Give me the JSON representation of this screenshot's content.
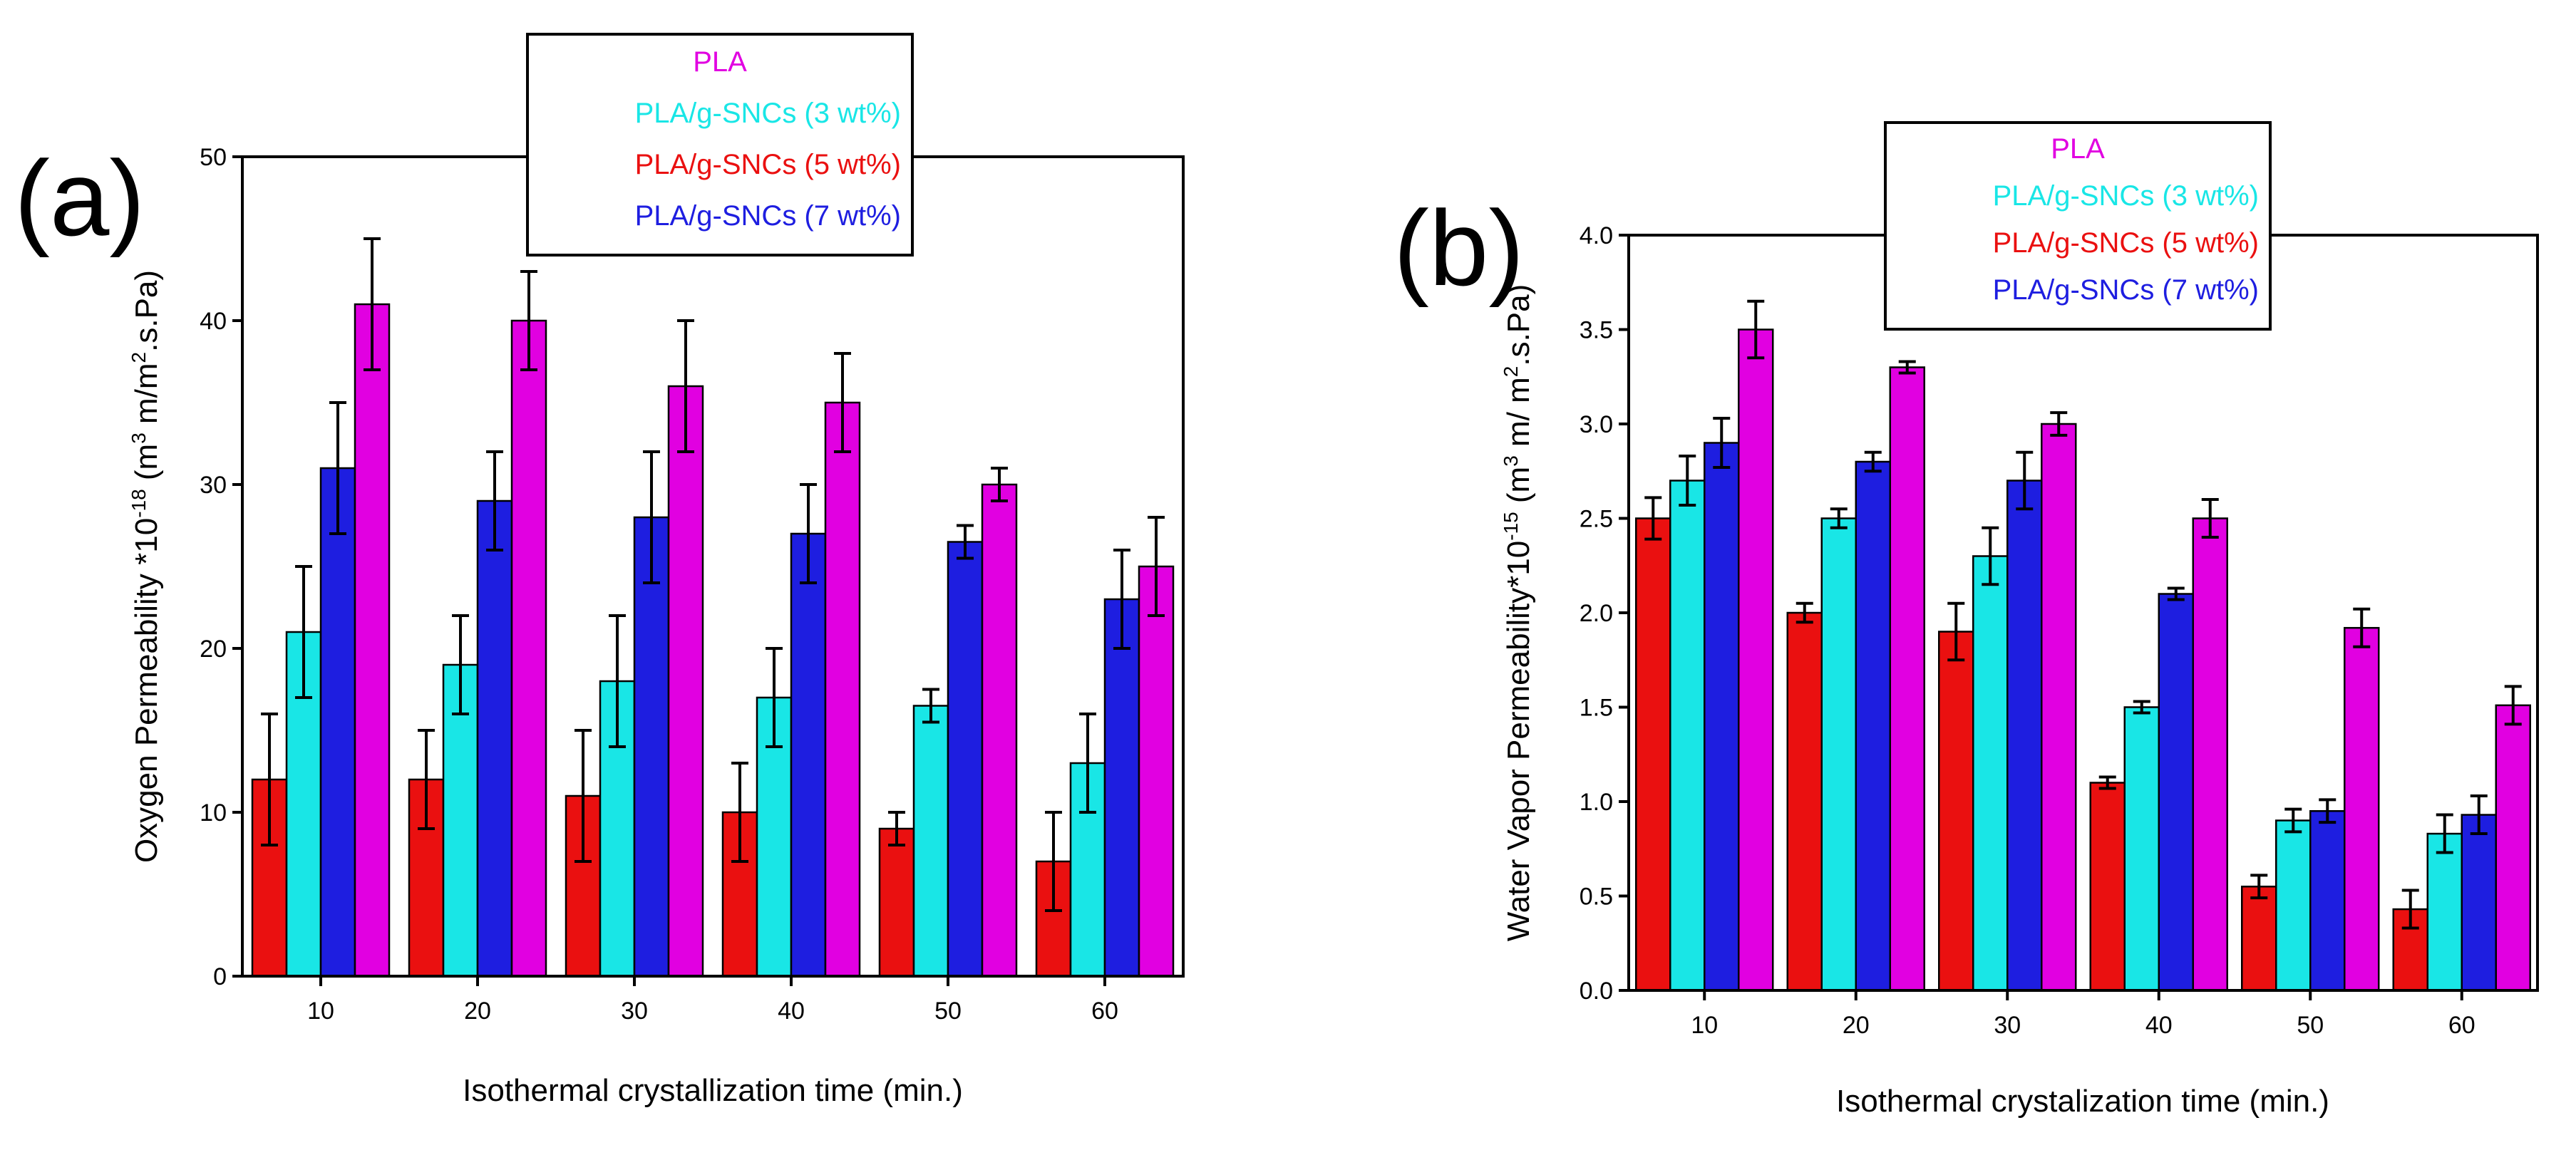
{
  "colors": {
    "PLA": "#e100e1",
    "PLA/g-SNCs (3 wt%)": "#19e6e6",
    "PLA/g-SNCs (5 wt%)": "#ea1010",
    "PLA/g-SNCs (7 wt%)": "#1e1ee0"
  },
  "chart_data": [
    {
      "type": "bar",
      "panel_label": "(a)",
      "title": "",
      "categories": [
        "10",
        "20",
        "30",
        "40",
        "50",
        "60"
      ],
      "xlabel": "Isothermal crystallization time (min.)",
      "ylabel": "Oxygen Permeability *10",
      "ylabel_sup1": "-18",
      "ylabel_mid": " (m",
      "ylabel_sup2": "3",
      "ylabel_mid2": " m/m",
      "ylabel_sup3": "2",
      "ylabel_end": ".s.Pa)",
      "ylim": [
        0,
        50
      ],
      "yticks": [
        0,
        10,
        20,
        30,
        40,
        50
      ],
      "ytick_labels": [
        "0",
        "10",
        "20",
        "30",
        "40",
        "50"
      ],
      "legend": [
        "PLA",
        "PLA/g-SNCs (3 wt%)",
        "PLA/g-SNCs (5 wt%)",
        "PLA/g-SNCs (7 wt%)"
      ],
      "legend_position": "top-center",
      "bar_order": [
        "PLA/g-SNCs (5 wt%)",
        "PLA/g-SNCs (3 wt%)",
        "PLA/g-SNCs (7 wt%)",
        "PLA"
      ],
      "series": [
        {
          "name": "PLA/g-SNCs (5 wt%)",
          "values": [
            12,
            12,
            11,
            10,
            9,
            7
          ],
          "errors": [
            4,
            3,
            4,
            3,
            1,
            3
          ]
        },
        {
          "name": "PLA/g-SNCs (3 wt%)",
          "values": [
            21,
            19,
            18,
            17,
            16.5,
            13
          ],
          "errors": [
            4,
            3,
            4,
            3,
            1,
            3
          ]
        },
        {
          "name": "PLA/g-SNCs (7 wt%)",
          "values": [
            31,
            29,
            28,
            27,
            26.5,
            23
          ],
          "errors": [
            4,
            3,
            4,
            3,
            1,
            3
          ]
        },
        {
          "name": "PLA",
          "values": [
            41,
            40,
            36,
            35,
            30,
            25
          ],
          "errors": [
            4,
            3,
            4,
            3,
            1,
            3
          ]
        }
      ]
    },
    {
      "type": "bar",
      "panel_label": "(b)",
      "title": "",
      "categories": [
        "10",
        "20",
        "30",
        "40",
        "50",
        "60"
      ],
      "xlabel": "Isothermal crystalization time (min.)",
      "ylabel": "Water Vapor Permeability*10",
      "ylabel_sup1": "-15",
      "ylabel_mid": " (m",
      "ylabel_sup2": "3",
      "ylabel_mid2": " m/ m",
      "ylabel_sup3": "2",
      "ylabel_end": ".s.Pa)",
      "ylim": [
        0,
        4
      ],
      "yticks": [
        0,
        0.5,
        1,
        1.5,
        2,
        2.5,
        3,
        3.5,
        4
      ],
      "ytick_labels": [
        "0.0",
        "0.5",
        "1.0",
        "1.5",
        "2.0",
        "2.5",
        "3.0",
        "3.5",
        "4.0"
      ],
      "legend": [
        "PLA",
        "PLA/g-SNCs (3 wt%)",
        "PLA/g-SNCs (5 wt%)",
        "PLA/g-SNCs (7 wt%)"
      ],
      "legend_position": "top-center",
      "bar_order": [
        "PLA/g-SNCs (5 wt%)",
        "PLA/g-SNCs (3 wt%)",
        "PLA/g-SNCs (7 wt%)",
        "PLA"
      ],
      "series": [
        {
          "name": "PLA/g-SNCs (5 wt%)",
          "values": [
            2.5,
            2.0,
            1.9,
            1.1,
            0.55,
            0.43
          ],
          "errors": [
            0.11,
            0.05,
            0.15,
            0.03,
            0.06,
            0.1
          ]
        },
        {
          "name": "PLA/g-SNCs (3 wt%)",
          "values": [
            2.7,
            2.5,
            2.3,
            1.5,
            0.9,
            0.83
          ],
          "errors": [
            0.13,
            0.05,
            0.15,
            0.03,
            0.06,
            0.1
          ]
        },
        {
          "name": "PLA/g-SNCs (7 wt%)",
          "values": [
            2.9,
            2.8,
            2.7,
            2.1,
            0.95,
            0.93
          ],
          "errors": [
            0.13,
            0.05,
            0.15,
            0.03,
            0.06,
            0.1
          ]
        },
        {
          "name": "PLA",
          "values": [
            3.5,
            3.3,
            3.0,
            2.5,
            1.92,
            1.51
          ],
          "errors": [
            0.15,
            0.03,
            0.06,
            0.1,
            0.1,
            0.1
          ]
        }
      ]
    }
  ]
}
